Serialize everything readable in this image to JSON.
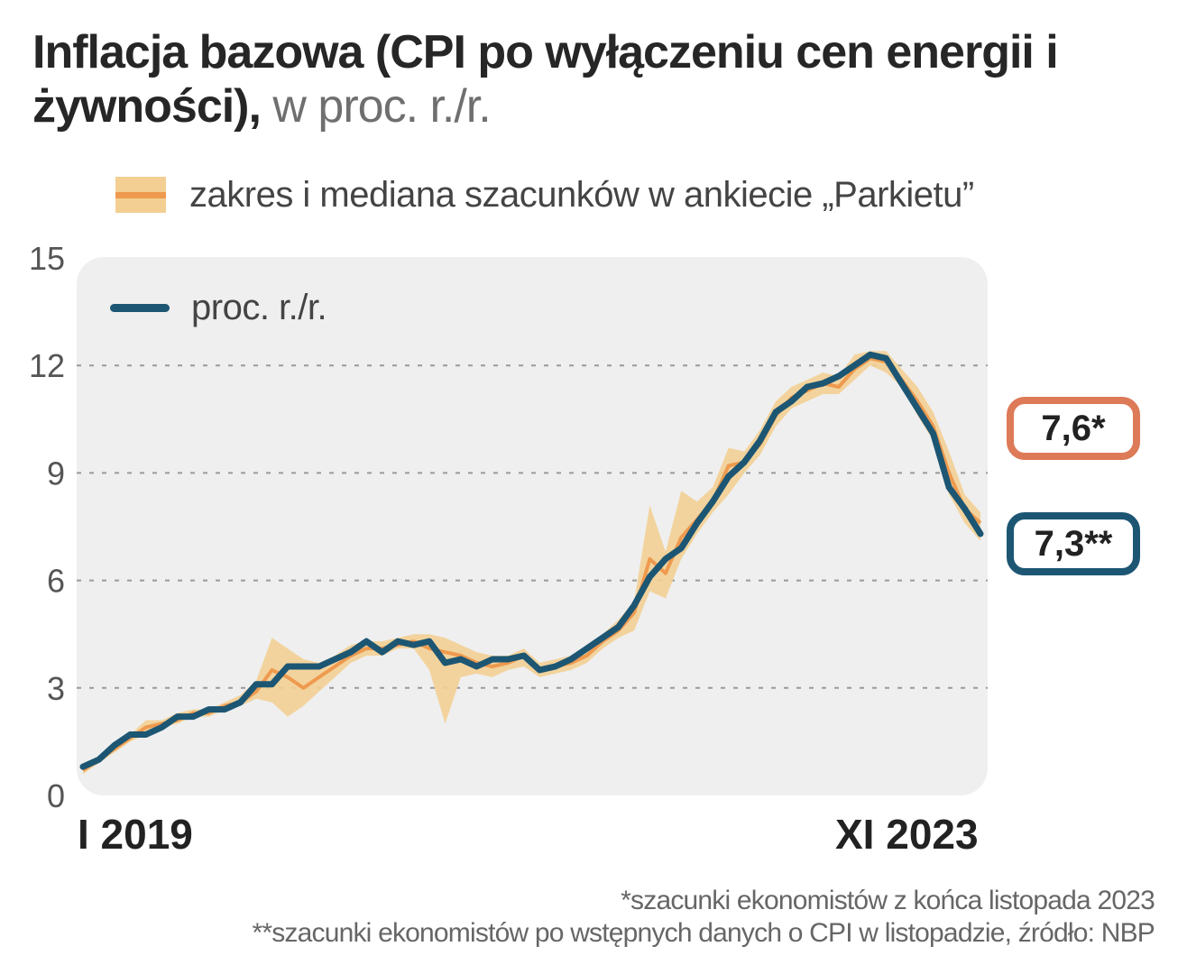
{
  "title": {
    "bold": "Inflacja bazowa (CPI po wyłączeniu cen energii i żywności),",
    "unit": "w proc. r./r."
  },
  "legend": {
    "range_label": "zakres i mediana szacunków w ankiecie „Parkietu”",
    "line_label": "proc. r./r."
  },
  "colors": {
    "line": "#1c5673",
    "range": "#f3cf93",
    "median": "#ee9a4f",
    "plot_bg": "#efefef",
    "est_badge": "#dd7a58"
  },
  "badges": {
    "estimate": "7,6*",
    "actual": "7,3**"
  },
  "x_axis": {
    "start_label": "I 2019",
    "end_label": "XI 2023"
  },
  "footnotes": [
    "*szacunki ekonomistów z końca listopada 2023",
    "**szacunki ekonomistów po wstępnych danych o CPI w listopadzie, źródło: NBP"
  ],
  "chart_data": {
    "type": "line",
    "title": "Inflacja bazowa (CPI po wyłączeniu cen energii i żywności)",
    "unit": "w proc. r./r.",
    "x_start": "I 2019",
    "x_end": "XI 2023",
    "ylim": [
      0,
      15
    ],
    "yticks": [
      0,
      3,
      6,
      9,
      12,
      15
    ],
    "grid": "dashed horizontal",
    "series": [
      {
        "name": "proc. r./r.",
        "values": [
          0.8,
          1.0,
          1.4,
          1.7,
          1.7,
          1.9,
          2.2,
          2.2,
          2.4,
          2.4,
          2.6,
          3.1,
          3.1,
          3.6,
          3.6,
          3.6,
          3.8,
          4.0,
          4.3,
          4.0,
          4.3,
          4.2,
          4.3,
          3.7,
          3.8,
          3.6,
          3.8,
          3.8,
          3.9,
          3.5,
          3.6,
          3.8,
          4.1,
          4.4,
          4.7,
          5.3,
          6.1,
          6.6,
          6.9,
          7.6,
          8.2,
          8.9,
          9.3,
          9.9,
          10.7,
          11.0,
          11.4,
          11.5,
          11.7,
          12.0,
          12.3,
          12.2,
          11.5,
          10.8,
          10.1,
          8.6,
          8.0,
          7.3
        ]
      },
      {
        "name": "zakres i mediana szacunków w ankiecie „Parkietu”",
        "median": [
          0.7,
          1.0,
          1.3,
          1.6,
          1.9,
          2.0,
          2.1,
          2.3,
          2.3,
          2.5,
          2.6,
          2.9,
          3.5,
          3.3,
          3.0,
          3.3,
          3.6,
          3.9,
          4.1,
          4.1,
          4.2,
          4.3,
          4.1,
          4.0,
          3.9,
          3.7,
          3.6,
          3.7,
          3.9,
          3.5,
          3.6,
          3.7,
          3.9,
          4.3,
          4.6,
          5.1,
          6.6,
          6.2,
          7.2,
          7.7,
          8.2,
          9.2,
          9.3,
          9.8,
          10.6,
          11.1,
          11.3,
          11.5,
          11.4,
          11.9,
          12.2,
          12.1,
          11.6,
          11.0,
          10.3,
          9.0,
          8.0,
          7.6
        ],
        "low": [
          0.6,
          0.9,
          1.2,
          1.5,
          1.7,
          1.9,
          2.0,
          2.2,
          2.2,
          2.4,
          2.5,
          2.7,
          2.6,
          2.2,
          2.5,
          2.9,
          3.3,
          3.7,
          3.9,
          3.9,
          4.1,
          4.1,
          3.5,
          2.0,
          3.3,
          3.4,
          3.3,
          3.5,
          3.6,
          3.3,
          3.4,
          3.5,
          3.7,
          4.1,
          4.4,
          4.6,
          5.7,
          5.5,
          6.6,
          7.3,
          7.9,
          8.4,
          9.0,
          9.5,
          10.3,
          10.8,
          11.0,
          11.2,
          11.2,
          11.6,
          12.0,
          11.8,
          11.4,
          10.6,
          9.9,
          8.4,
          7.6,
          7.1
        ],
        "high": [
          0.8,
          1.1,
          1.4,
          1.7,
          2.1,
          2.1,
          2.3,
          2.4,
          2.4,
          2.6,
          2.8,
          3.2,
          4.4,
          4.1,
          3.8,
          3.7,
          3.9,
          4.2,
          4.3,
          4.3,
          4.4,
          4.5,
          4.5,
          4.4,
          4.2,
          4.0,
          3.9,
          3.9,
          4.1,
          3.7,
          3.8,
          3.9,
          4.2,
          4.5,
          4.9,
          5.4,
          8.1,
          6.8,
          8.5,
          8.2,
          8.6,
          9.7,
          9.6,
          10.2,
          11.0,
          11.4,
          11.6,
          11.8,
          11.7,
          12.3,
          12.4,
          12.4,
          11.9,
          11.4,
          10.7,
          9.6,
          8.4,
          7.9
        ]
      }
    ],
    "annotations": [
      "7,6*",
      "7,3**"
    ]
  }
}
